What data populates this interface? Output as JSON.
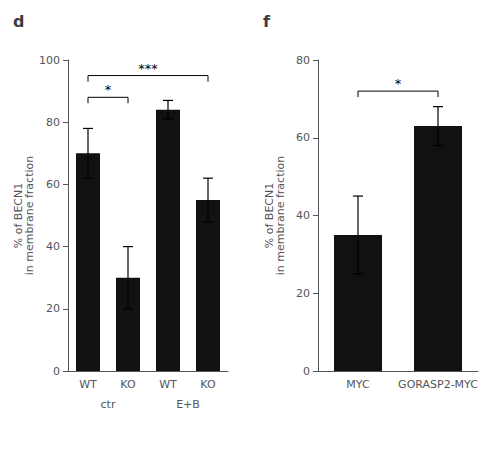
{
  "chart_data": [
    {
      "type": "bar",
      "title": "d",
      "categories": [
        "WT",
        "KO",
        "WT",
        "KO"
      ],
      "groups": [
        "ctr",
        "ctr",
        "E+B",
        "E+B"
      ],
      "values": [
        70,
        30,
        84,
        55
      ],
      "errors": [
        8,
        10,
        3,
        7
      ],
      "ylabel": "% of BECN1\nin membrane fraction",
      "ylim": [
        0,
        100
      ],
      "yticks": [
        0,
        20,
        40,
        60,
        80,
        100
      ],
      "color": "#111111",
      "grid": false,
      "annotations": [
        {
          "text": "*",
          "y": 88,
          "between": [
            0,
            1
          ]
        },
        {
          "text": "***",
          "y": 95,
          "between": [
            0,
            3
          ]
        }
      ]
    },
    {
      "type": "bar",
      "title": "f",
      "categories": [
        "MYC",
        "GORASP2-MYC"
      ],
      "values": [
        35,
        63
      ],
      "errors": [
        10,
        5
      ],
      "ylabel": "% of BECN1\nin membrane fraction",
      "ylim": [
        0,
        80
      ],
      "yticks": [
        0,
        20,
        40,
        60,
        80
      ],
      "color": "#111111",
      "grid": false,
      "annotations": [
        {
          "text": "*",
          "y": 72,
          "between": [
            0,
            1
          ]
        }
      ]
    }
  ]
}
